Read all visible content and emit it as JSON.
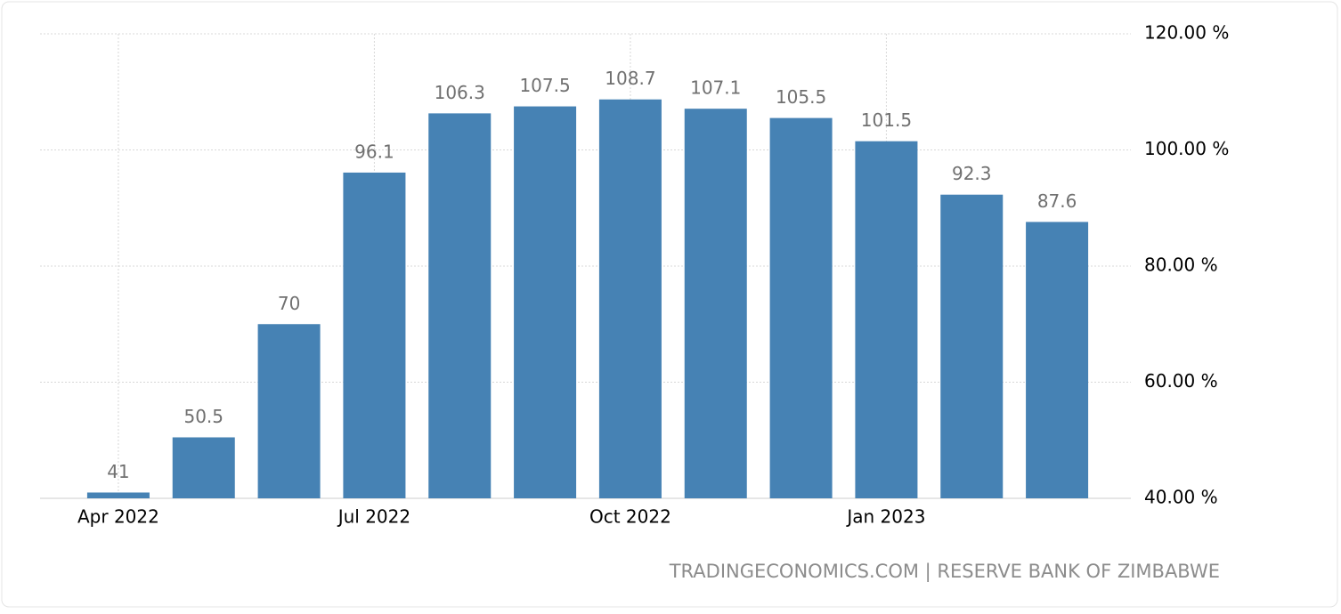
{
  "chart_data": {
    "type": "bar",
    "categories": [
      "Apr 2022",
      null,
      null,
      "Jul 2022",
      null,
      null,
      "Oct 2022",
      null,
      null,
      "Jan 2023",
      null,
      null
    ],
    "values": [
      41,
      50.5,
      70,
      96.1,
      106.3,
      107.5,
      108.7,
      107.1,
      105.5,
      101.5,
      92.3,
      87.6
    ],
    "color": "#4682b4",
    "ylim": [
      40,
      120
    ],
    "yticks": [
      {
        "value": 40,
        "label": "40.00 %"
      },
      {
        "value": 60,
        "label": "60.00 %"
      },
      {
        "value": 80,
        "label": "80.00 %"
      },
      {
        "value": 100,
        "label": "100.00 %"
      },
      {
        "value": 120,
        "label": "120.00 %"
      }
    ],
    "grid": true,
    "source": "TRADINGECONOMICS.COM | RESERVE BANK OF ZIMBABWE"
  }
}
